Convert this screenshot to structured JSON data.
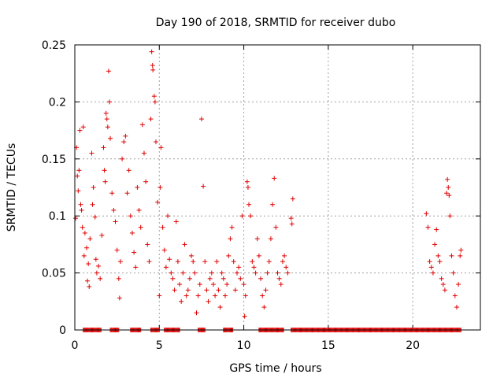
{
  "chart_data": {
    "type": "scatter",
    "title": "Day 190 of 2018, SRMTID for receiver dubo",
    "xlabel": "GPS time / hours",
    "ylabel": "SRMTID / TECUs",
    "xlim": [
      0,
      24
    ],
    "ylim": [
      0,
      0.25
    ],
    "xticks": [
      0,
      5,
      10,
      15,
      20
    ],
    "xtick_labels": [
      "0",
      "5",
      "10",
      "15",
      "20"
    ],
    "yticks": [
      0,
      0.05,
      0.1,
      0.15,
      0.2,
      0.25
    ],
    "ytick_labels": [
      "0",
      "0.05",
      "0.1",
      "0.15",
      "0.2",
      "0.25"
    ],
    "grid": true,
    "marker": "+",
    "series": [
      {
        "name": "SRMTID",
        "color": "#e00000",
        "points": [
          [
            0.05,
            0.098
          ],
          [
            0.1,
            0.16
          ],
          [
            0.15,
            0.135
          ],
          [
            0.2,
            0.122
          ],
          [
            0.25,
            0.14
          ],
          [
            0.3,
            0.175
          ],
          [
            0.35,
            0.11
          ],
          [
            0.4,
            0.105
          ],
          [
            0.45,
            0.09
          ],
          [
            0.5,
            0.178
          ],
          [
            0.55,
            0.065
          ],
          [
            0.6,
            0.085
          ],
          [
            0.7,
            0.072
          ],
          [
            0.75,
            0.043
          ],
          [
            0.8,
            0.058
          ],
          [
            0.85,
            0.038
          ],
          [
            0.9,
            0.08
          ],
          [
            1.0,
            0.155
          ],
          [
            1.05,
            0.11
          ],
          [
            1.1,
            0.125
          ],
          [
            1.2,
            0.099
          ],
          [
            1.25,
            0.062
          ],
          [
            1.3,
            0.05
          ],
          [
            1.4,
            0.056
          ],
          [
            1.5,
            0.045
          ],
          [
            1.6,
            0.083
          ],
          [
            1.7,
            0.16
          ],
          [
            1.75,
            0.14
          ],
          [
            1.8,
            0.13
          ],
          [
            1.85,
            0.19
          ],
          [
            1.9,
            0.185
          ],
          [
            1.95,
            0.178
          ],
          [
            2.0,
            0.227
          ],
          [
            2.05,
            0.2
          ],
          [
            2.1,
            0.168
          ],
          [
            2.2,
            0.12
          ],
          [
            2.3,
            0.105
          ],
          [
            2.4,
            0.095
          ],
          [
            2.5,
            0.07
          ],
          [
            2.6,
            0.045
          ],
          [
            2.65,
            0.028
          ],
          [
            2.7,
            0.06
          ],
          [
            2.8,
            0.15
          ],
          [
            2.9,
            0.165
          ],
          [
            3.0,
            0.17
          ],
          [
            3.1,
            0.12
          ],
          [
            3.2,
            0.14
          ],
          [
            3.3,
            0.1
          ],
          [
            3.4,
            0.085
          ],
          [
            3.5,
            0.068
          ],
          [
            3.6,
            0.055
          ],
          [
            3.7,
            0.125
          ],
          [
            3.8,
            0.105
          ],
          [
            3.9,
            0.09
          ],
          [
            4.0,
            0.18
          ],
          [
            4.1,
            0.155
          ],
          [
            4.2,
            0.13
          ],
          [
            4.3,
            0.075
          ],
          [
            4.4,
            0.06
          ],
          [
            4.5,
            0.185
          ],
          [
            4.55,
            0.244
          ],
          [
            4.6,
            0.232
          ],
          [
            4.62,
            0.228
          ],
          [
            4.7,
            0.205
          ],
          [
            4.75,
            0.2
          ],
          [
            4.8,
            0.165
          ],
          [
            4.9,
            0.112
          ],
          [
            5.0,
            0.03
          ],
          [
            5.05,
            0.125
          ],
          [
            5.1,
            0.16
          ],
          [
            5.2,
            0.09
          ],
          [
            5.3,
            0.07
          ],
          [
            5.4,
            0.055
          ],
          [
            5.5,
            0.1
          ],
          [
            5.6,
            0.062
          ],
          [
            5.7,
            0.05
          ],
          [
            5.8,
            0.045
          ],
          [
            5.9,
            0.035
          ],
          [
            6.0,
            0.095
          ],
          [
            6.1,
            0.06
          ],
          [
            6.2,
            0.04
          ],
          [
            6.3,
            0.025
          ],
          [
            6.4,
            0.05
          ],
          [
            6.5,
            0.075
          ],
          [
            6.6,
            0.03
          ],
          [
            6.7,
            0.035
          ],
          [
            6.8,
            0.045
          ],
          [
            6.9,
            0.065
          ],
          [
            7.0,
            0.06
          ],
          [
            7.1,
            0.05
          ],
          [
            7.2,
            0.015
          ],
          [
            7.3,
            0.03
          ],
          [
            7.4,
            0.04
          ],
          [
            7.5,
            0.185
          ],
          [
            7.6,
            0.126
          ],
          [
            7.7,
            0.06
          ],
          [
            7.8,
            0.035
          ],
          [
            7.9,
            0.025
          ],
          [
            8.0,
            0.045
          ],
          [
            8.1,
            0.05
          ],
          [
            8.2,
            0.04
          ],
          [
            8.3,
            0.03
          ],
          [
            8.4,
            0.06
          ],
          [
            8.5,
            0.035
          ],
          [
            8.6,
            0.02
          ],
          [
            8.7,
            0.05
          ],
          [
            8.8,
            0.045
          ],
          [
            8.9,
            0.03
          ],
          [
            9.0,
            0.04
          ],
          [
            9.1,
            0.065
          ],
          [
            9.2,
            0.08
          ],
          [
            9.3,
            0.09
          ],
          [
            9.4,
            0.06
          ],
          [
            9.5,
            0.035
          ],
          [
            9.6,
            0.05
          ],
          [
            9.7,
            0.055
          ],
          [
            9.8,
            0.045
          ],
          [
            9.9,
            0.1
          ],
          [
            10.0,
            0.04
          ],
          [
            10.05,
            0.012
          ],
          [
            10.1,
            0.03
          ],
          [
            10.2,
            0.13
          ],
          [
            10.25,
            0.125
          ],
          [
            10.3,
            0.11
          ],
          [
            10.4,
            0.1
          ],
          [
            10.5,
            0.06
          ],
          [
            10.6,
            0.055
          ],
          [
            10.7,
            0.05
          ],
          [
            10.8,
            0.08
          ],
          [
            10.9,
            0.065
          ],
          [
            11.0,
            0.045
          ],
          [
            11.1,
            0.03
          ],
          [
            11.2,
            0.02
          ],
          [
            11.3,
            0.035
          ],
          [
            11.4,
            0.05
          ],
          [
            11.5,
            0.06
          ],
          [
            11.6,
            0.08
          ],
          [
            11.7,
            0.11
          ],
          [
            11.8,
            0.133
          ],
          [
            11.9,
            0.09
          ],
          [
            12.0,
            0.05
          ],
          [
            12.1,
            0.045
          ],
          [
            12.2,
            0.04
          ],
          [
            12.3,
            0.06
          ],
          [
            12.4,
            0.065
          ],
          [
            12.5,
            0.055
          ],
          [
            12.6,
            0.05
          ],
          [
            12.8,
            0.098
          ],
          [
            12.85,
            0.093
          ],
          [
            12.9,
            0.115
          ],
          [
            20.8,
            0.102
          ],
          [
            20.9,
            0.09
          ],
          [
            21.0,
            0.06
          ],
          [
            21.1,
            0.055
          ],
          [
            21.2,
            0.05
          ],
          [
            21.3,
            0.075
          ],
          [
            21.4,
            0.088
          ],
          [
            21.5,
            0.065
          ],
          [
            21.6,
            0.06
          ],
          [
            21.7,
            0.045
          ],
          [
            21.8,
            0.04
          ],
          [
            21.9,
            0.035
          ],
          [
            22.0,
            0.12
          ],
          [
            22.05,
            0.132
          ],
          [
            22.1,
            0.125
          ],
          [
            22.15,
            0.118
          ],
          [
            22.2,
            0.1
          ],
          [
            22.3,
            0.065
          ],
          [
            22.4,
            0.05
          ],
          [
            22.5,
            0.03
          ],
          [
            22.6,
            0.02
          ],
          [
            22.7,
            0.04
          ],
          [
            22.8,
            0.065
          ],
          [
            22.85,
            0.07
          ]
        ],
        "zero_ranges": [
          [
            0.5,
            1.6
          ],
          [
            2.1,
            2.6
          ],
          [
            3.3,
            3.9
          ],
          [
            4.5,
            5.0
          ],
          [
            5.3,
            6.2
          ],
          [
            7.3,
            7.7
          ],
          [
            8.8,
            9.4
          ],
          [
            10.9,
            12.4
          ],
          [
            12.8,
            22.9
          ]
        ]
      }
    ]
  }
}
